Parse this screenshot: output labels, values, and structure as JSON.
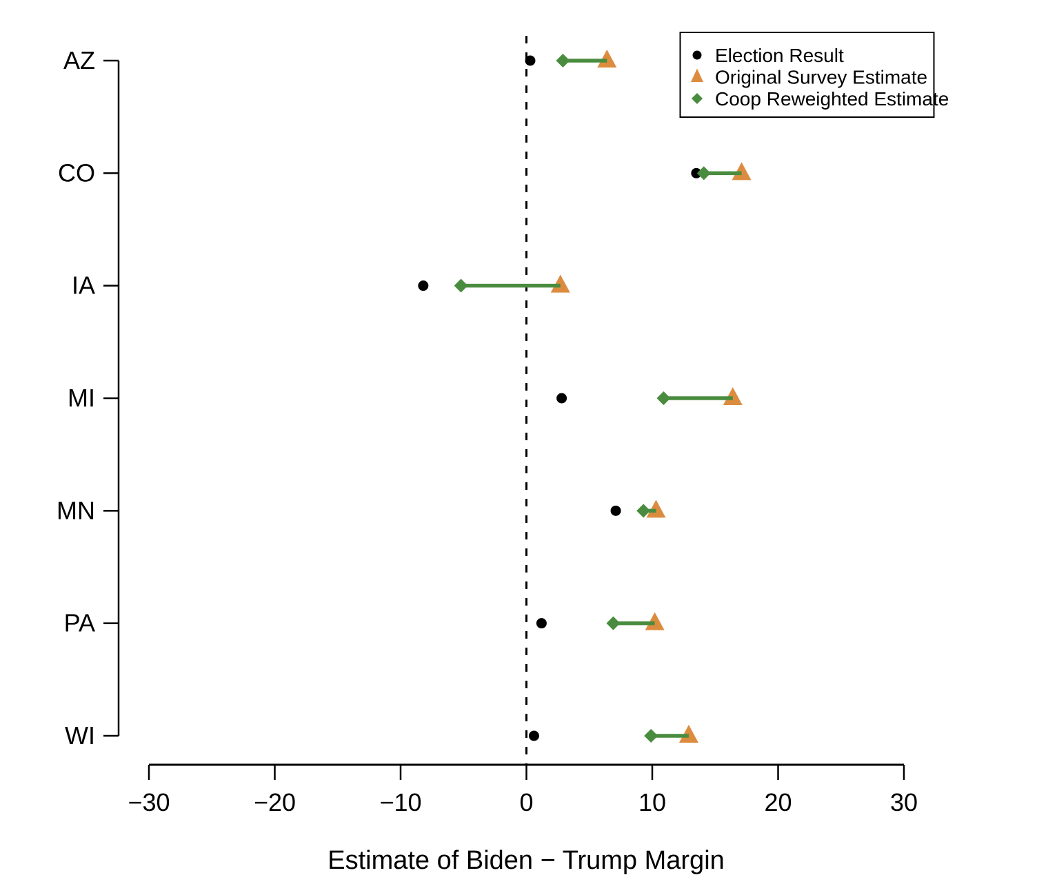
{
  "chart_data": {
    "type": "scatter",
    "title": "",
    "xlabel": "Estimate of Biden − Trump Margin",
    "ylabel": "",
    "xlim": [
      -30,
      30
    ],
    "xticks": [
      -30,
      -20,
      -10,
      0,
      10,
      20,
      30
    ],
    "grid": false,
    "reference_line": {
      "x": 0,
      "style": "dashed",
      "color": "#000000"
    },
    "categories": [
      "AZ",
      "CO",
      "IA",
      "MI",
      "MN",
      "PA",
      "WI"
    ],
    "series": [
      {
        "name": "Election Result",
        "marker": "circle",
        "color": "#000000",
        "values": [
          0.3,
          13.5,
          -8.2,
          2.8,
          7.1,
          1.2,
          0.6
        ]
      },
      {
        "name": "Original Survey Estimate",
        "marker": "triangle",
        "color": "#DC8C3F",
        "values": [
          6.4,
          17.1,
          2.7,
          16.4,
          10.3,
          10.2,
          12.9
        ]
      },
      {
        "name": "Coop Reweighted Estimate",
        "marker": "diamond",
        "color": "#4A8C3F",
        "values": [
          2.9,
          14.1,
          -5.2,
          10.9,
          9.3,
          6.9,
          9.9
        ]
      }
    ],
    "connector": {
      "from_series": "Coop Reweighted Estimate",
      "to_series": "Original Survey Estimate",
      "color": "#4A8C3F"
    },
    "legend": {
      "position": "top-right",
      "entries": [
        "Election Result",
        "Original Survey Estimate",
        "Coop Reweighted Estimate"
      ]
    }
  }
}
